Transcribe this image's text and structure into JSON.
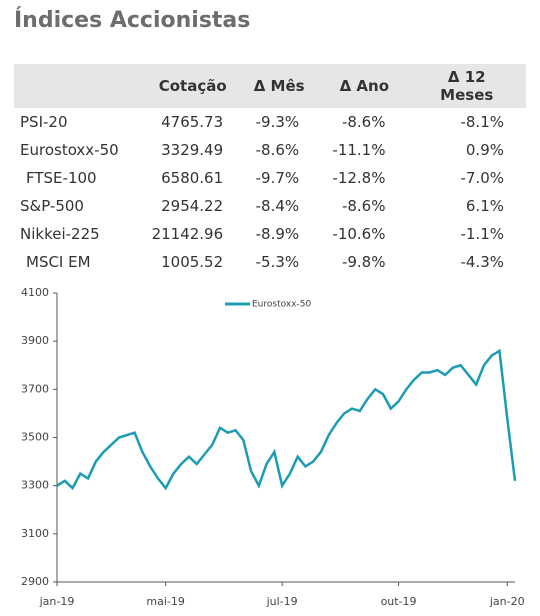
{
  "title": "Índices Accionistas",
  "table": {
    "header": [
      "",
      "Cotação",
      "Δ Mês",
      "Δ Ano",
      "Δ 12 Meses"
    ],
    "rows": [
      [
        "PSI-20",
        "4765.73",
        "-9.3%",
        "-8.6%",
        "-8.1%"
      ],
      [
        "Eurostoxx-50",
        "3329.49",
        "-8.6%",
        "-11.1%",
        "0.9%"
      ],
      [
        "FTSE-100",
        "6580.61",
        "-9.7%",
        "-12.8%",
        "-7.0%"
      ],
      [
        "S&P-500",
        "2954.22",
        "-8.4%",
        "-8.6%",
        "6.1%"
      ],
      [
        "Nikkei-225",
        "21142.96",
        "-8.9%",
        "-10.6%",
        "-1.1%"
      ],
      [
        "MSCI EM",
        "1005.52",
        "-5.3%",
        "-9.8%",
        "-4.3%"
      ]
    ]
  },
  "chart_data": {
    "type": "line",
    "categories": [
      "jan-19",
      null,
      null,
      null,
      null,
      null,
      null,
      null,
      null,
      null,
      null,
      null,
      null,
      null,
      "mai-19",
      null,
      null,
      null,
      null,
      null,
      null,
      null,
      null,
      null,
      null,
      null,
      null,
      null,
      null,
      "jul-19",
      null,
      null,
      null,
      null,
      null,
      null,
      null,
      null,
      null,
      null,
      null,
      null,
      null,
      null,
      "out-19",
      null,
      null,
      null,
      null,
      null,
      null,
      null,
      null,
      null,
      null,
      null,
      null,
      null,
      "jan-20",
      null
    ],
    "series": [
      {
        "name": "Eurostoxx-50",
        "color": "#1b9cb3",
        "values": [
          3300,
          3320,
          3290,
          3350,
          3330,
          3400,
          3440,
          3470,
          3500,
          3510,
          3520,
          3440,
          3380,
          3330,
          3290,
          3350,
          3390,
          3420,
          3390,
          3430,
          3470,
          3540,
          3520,
          3530,
          3490,
          3360,
          3300,
          3390,
          3440,
          3300,
          3350,
          3420,
          3380,
          3400,
          3440,
          3510,
          3560,
          3600,
          3620,
          3610,
          3660,
          3700,
          3680,
          3620,
          3650,
          3700,
          3740,
          3770,
          3770,
          3780,
          3760,
          3790,
          3800,
          3760,
          3720,
          3800,
          3840,
          3860,
          3580,
          3320
        ]
      }
    ],
    "ylim": [
      2900,
      4100
    ],
    "yticks": [
      2900,
      3100,
      3300,
      3500,
      3700,
      3900,
      4100
    ]
  }
}
